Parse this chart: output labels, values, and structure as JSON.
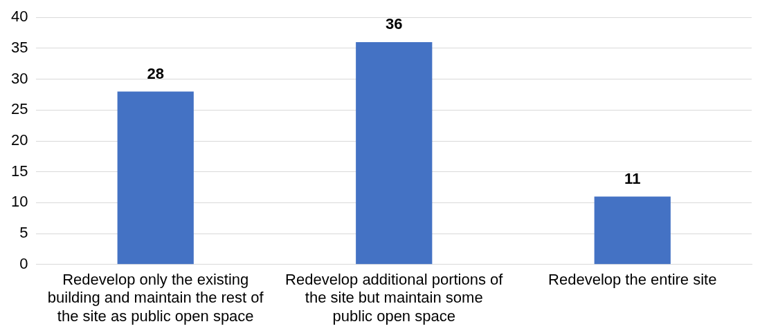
{
  "chart_data": {
    "type": "bar",
    "categories": [
      "Redevelop only the existing building and maintain the rest of the site as public open space",
      "Redevelop additional portions of the site but maintain some public open space",
      "Redevelop the entire site"
    ],
    "values": [
      28,
      36,
      11
    ],
    "color": "#4472c4",
    "ylim": [
      0,
      40
    ],
    "yticks": [
      0,
      5,
      10,
      15,
      20,
      25,
      30,
      35,
      40
    ],
    "grid": "y",
    "data_labels": true,
    "legend": false
  }
}
